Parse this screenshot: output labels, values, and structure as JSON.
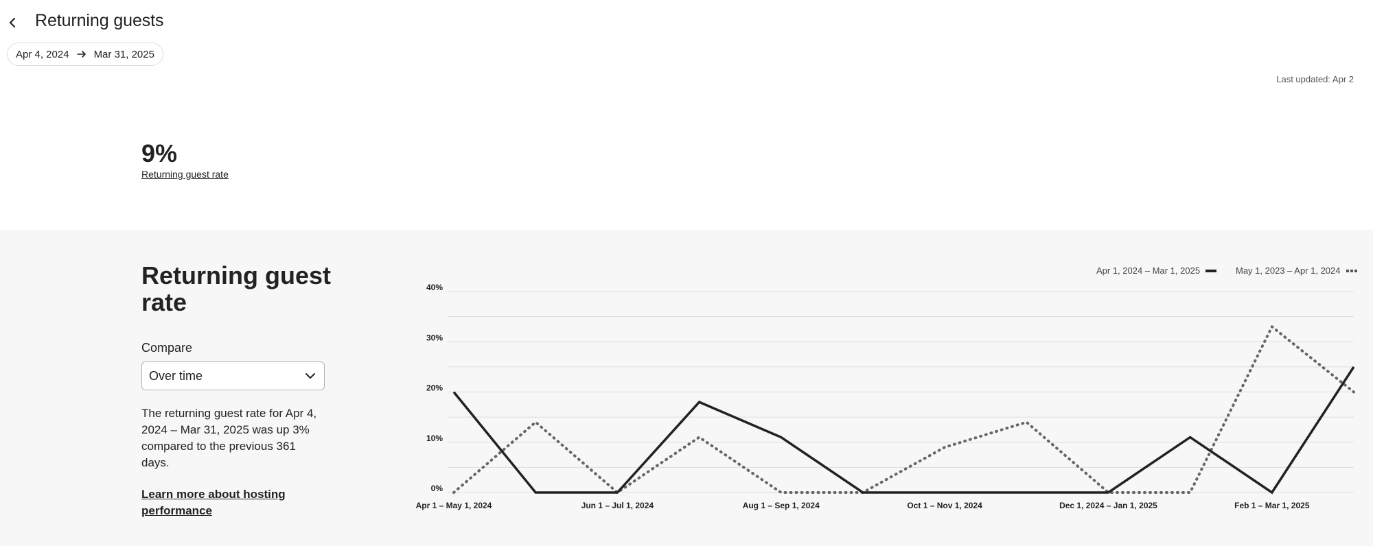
{
  "header": {
    "title": "Returning guests",
    "date_start": "Apr 4, 2024",
    "date_end": "Mar 31, 2025",
    "last_updated": "Last updated: Apr 2"
  },
  "kpi": {
    "value": "9%",
    "label": "Returning guest rate"
  },
  "panel": {
    "title": "Returning guest rate",
    "compare_label": "Compare",
    "compare_value": "Over time",
    "description": "The returning guest rate for Apr 4, 2024 – Mar 31, 2025 was up 3% compared to the previous 361 days.",
    "learn_more": "Learn more about hosting performance"
  },
  "colors": {
    "current_series": "#222222",
    "previous_series": "#666666",
    "gridline": "#dddddd",
    "panel_bg": "#f7f7f7"
  },
  "icons": {
    "back": "chevron-left-icon",
    "date_arrow": "arrow-right-icon",
    "select": "chevron-down-icon"
  },
  "chart_data": {
    "type": "line",
    "y_unit": "%",
    "ylim": [
      0,
      40
    ],
    "yticks": [
      0,
      10,
      20,
      30,
      40
    ],
    "ytick_labels": [
      "0%",
      "10%",
      "20%",
      "30%",
      "40%"
    ],
    "grid": true,
    "legend_position": "top-right",
    "x_labels": [
      {
        "index": 0,
        "label": "Apr 1 – May 1, 2024"
      },
      {
        "index": 2,
        "label": "Jun 1 – Jul 1, 2024"
      },
      {
        "index": 4,
        "label": "Aug 1 – Sep 1, 2024"
      },
      {
        "index": 6,
        "label": "Oct 1 – Nov 1, 2024"
      },
      {
        "index": 8,
        "label": "Dec 1, 2024 – Jan 1, 2025"
      },
      {
        "index": 10,
        "label": "Feb 1 – Mar 1, 2025"
      }
    ],
    "series": [
      {
        "name": "Apr 1, 2024 – Mar 1, 2025",
        "style": "solid",
        "values": [
          20,
          0,
          0,
          18,
          11,
          0,
          0,
          0,
          0,
          11,
          0,
          25
        ]
      },
      {
        "name": "May 1, 2023 – Apr 1, 2024",
        "style": "dotted",
        "values": [
          0,
          14,
          0,
          11,
          0,
          0,
          9,
          14,
          0,
          0,
          33,
          20
        ]
      }
    ]
  }
}
